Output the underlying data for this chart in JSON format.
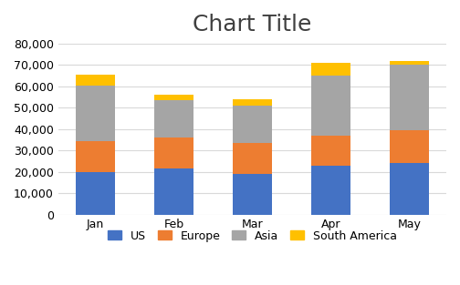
{
  "title": "Chart Title",
  "categories": [
    "Jan",
    "Feb",
    "Mar",
    "Apr",
    "May"
  ],
  "series": {
    "US": [
      20000,
      21500,
      19000,
      23000,
      24000
    ],
    "Europe": [
      14500,
      14500,
      14500,
      14000,
      15500
    ],
    "Asia": [
      26000,
      17500,
      17500,
      28000,
      30500
    ],
    "South America": [
      5000,
      2500,
      3000,
      6000,
      2000
    ]
  },
  "colors": {
    "US": "#4472C4",
    "Europe": "#ED7D31",
    "Asia": "#A5A5A5",
    "South America": "#FFC000"
  },
  "ylim": [
    0,
    80000
  ],
  "yticks": [
    0,
    10000,
    20000,
    30000,
    40000,
    50000,
    60000,
    70000,
    80000
  ],
  "background_color": "#ffffff",
  "grid_color": "#d9d9d9",
  "title_fontsize": 18,
  "legend_fontsize": 9,
  "tick_fontsize": 9,
  "bar_width": 0.5
}
